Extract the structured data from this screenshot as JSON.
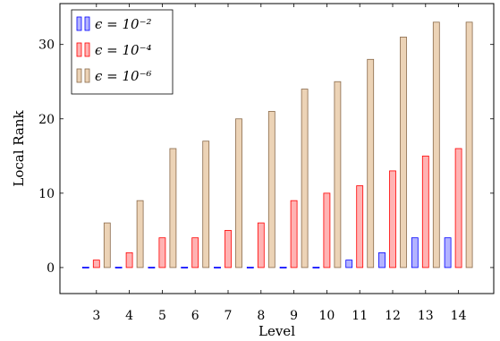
{
  "chart_data": {
    "type": "bar",
    "title": "",
    "xlabel": "Level",
    "ylabel": "Local Rank",
    "categories": [
      "3",
      "4",
      "5",
      "6",
      "7",
      "8",
      "9",
      "10",
      "11",
      "12",
      "13",
      "14"
    ],
    "ylim": [
      -3.5,
      35.5
    ],
    "yticks": [
      "0",
      "10",
      "20",
      "30"
    ],
    "grid": false,
    "legend_position": "top-left",
    "series": [
      {
        "name": "ϵ = 10⁻²",
        "color": "#0000ff",
        "fill": "#b3b3ff",
        "values": [
          0,
          0,
          0,
          0,
          0,
          0,
          0,
          0,
          1,
          2,
          4,
          4
        ]
      },
      {
        "name": "ϵ = 10⁻⁴",
        "color": "#ff0000",
        "fill": "#ffb3b3",
        "values": [
          1,
          2,
          4,
          4,
          5,
          6,
          9,
          10,
          11,
          13,
          15,
          16
        ]
      },
      {
        "name": "ϵ = 10⁻⁶",
        "color": "#8a6a4a",
        "fill": "#ecd3b6",
        "values": [
          6,
          9,
          16,
          17,
          20,
          21,
          24,
          25,
          28,
          31,
          33,
          33
        ]
      }
    ]
  }
}
